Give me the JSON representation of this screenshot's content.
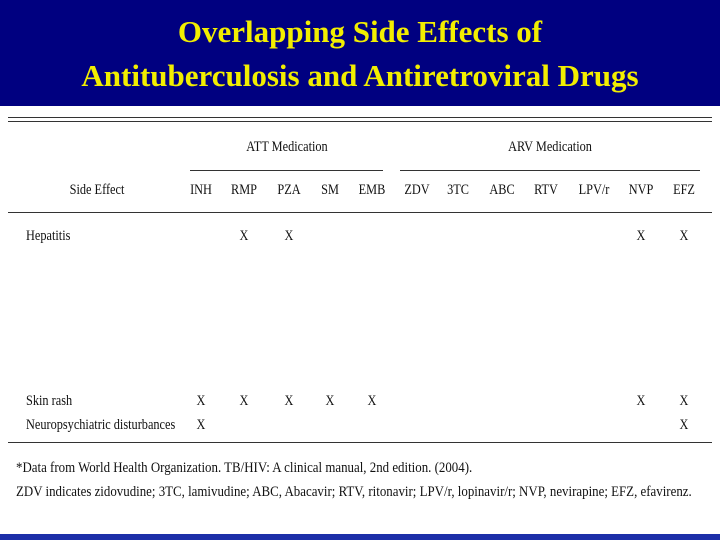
{
  "header": {
    "title_lines": [
      "Overlapping Side Effects of",
      "Antituberculosis and Antiretroviral Drugs"
    ]
  },
  "table": {
    "group_headers": [
      "ATT Medication",
      "ARV Medication"
    ],
    "columns": [
      "Side Effect",
      "INH",
      "RMP",
      "PZA",
      "SM",
      "EMB",
      "ZDV",
      "3TC",
      "ABC",
      "RTV",
      "LPV/r",
      "NVP",
      "EFZ"
    ],
    "rows": [
      [
        "Hepatitis",
        null,
        "X",
        "X",
        null,
        null,
        null,
        null,
        null,
        null,
        null,
        "X",
        "X"
      ],
      [
        "Skin rash",
        "X",
        "X",
        "X",
        "X",
        "X",
        null,
        null,
        null,
        null,
        null,
        "X",
        "X"
      ],
      [
        "Neuropsychiatric disturbances",
        "X",
        null,
        null,
        null,
        null,
        null,
        null,
        null,
        null,
        null,
        null,
        "X"
      ]
    ]
  },
  "footnotes": [
    "*Data from World Health Organization. TB/HIV: A clinical manual, 2nd edition. (2004).",
    "ZDV indicates zidovudine; 3TC, lamivudine; ABC, Abacavir; RTV, ritonavir; LPV/r, lopinavir/r; NVP, nevirapine; EFZ, efavirenz."
  ]
}
